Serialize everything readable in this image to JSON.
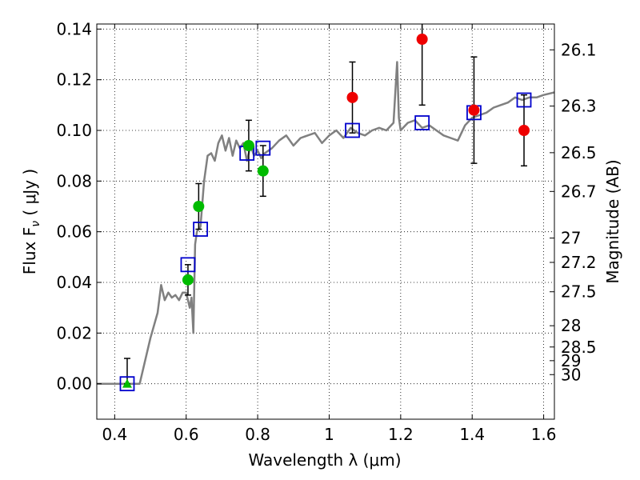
{
  "chart_data": {
    "type": "scatter",
    "xlabel": "Wavelength  λ (μm)",
    "ylabel": "Flux  F",
    "ylabel_subscript": "ν",
    "ylabel_unit": " ( μJy )",
    "y2label": "Magnitude (AB)",
    "xlim": [
      0.35,
      1.63
    ],
    "ylim": [
      -0.014,
      0.142
    ],
    "x_ticks": [
      0.4,
      0.6,
      0.8,
      1.0,
      1.2,
      1.4,
      1.6
    ],
    "x_tick_labels": [
      "0.4",
      "0.6",
      "0.8",
      "1",
      "1.2",
      "1.4",
      "1.6"
    ],
    "y_ticks": [
      0.0,
      0.02,
      0.04,
      0.06,
      0.08,
      0.1,
      0.12,
      0.14
    ],
    "y_tick_labels": [
      "0.00",
      "0.02",
      "0.04",
      "0.06",
      "0.08",
      "0.10",
      "0.12",
      "0.14"
    ],
    "y2_ticks": [
      {
        "label": "26.1",
        "flux": 0.1318
      },
      {
        "label": "26.3",
        "flux": 0.1096
      },
      {
        "label": "26.5",
        "flux": 0.0912
      },
      {
        "label": "26.7",
        "flux": 0.0759
      },
      {
        "label": "27",
        "flux": 0.0575
      },
      {
        "label": "27.2",
        "flux": 0.0479
      },
      {
        "label": "27.5",
        "flux": 0.0363
      },
      {
        "label": "28",
        "flux": 0.0229
      },
      {
        "label": "28.5",
        "flux": 0.0145
      },
      {
        "label": "29",
        "flux": 0.0091
      },
      {
        "label": "30",
        "flux": 0.0036
      }
    ],
    "grid": true,
    "colors": {
      "sed": "#808080",
      "model": "#0000cc",
      "green": "#00bb00",
      "red": "#ee0000",
      "errorbar": "#000000"
    },
    "series": [
      {
        "kind": "line",
        "color": "gray",
        "x": [
          0.35,
          0.4,
          0.45,
          0.47,
          0.5,
          0.52,
          0.53,
          0.54,
          0.55,
          0.56,
          0.57,
          0.58,
          0.59,
          0.6,
          0.61,
          0.615,
          0.62,
          0.625,
          0.63,
          0.64,
          0.65,
          0.66,
          0.67,
          0.68,
          0.69,
          0.7,
          0.71,
          0.72,
          0.73,
          0.74,
          0.75,
          0.76,
          0.77,
          0.78,
          0.79,
          0.8,
          0.81,
          0.82,
          0.84,
          0.86,
          0.88,
          0.9,
          0.92,
          0.94,
          0.96,
          0.98,
          1.0,
          1.02,
          1.04,
          1.06,
          1.08,
          1.1,
          1.12,
          1.14,
          1.16,
          1.18,
          1.19,
          1.195,
          1.2,
          1.22,
          1.24,
          1.26,
          1.28,
          1.3,
          1.32,
          1.34,
          1.36,
          1.38,
          1.4,
          1.42,
          1.44,
          1.46,
          1.48,
          1.5,
          1.52,
          1.54,
          1.56,
          1.58,
          1.6,
          1.63
        ],
        "y": [
          0.0,
          0.0,
          0.0,
          0.0,
          0.018,
          0.028,
          0.039,
          0.033,
          0.036,
          0.034,
          0.035,
          0.033,
          0.036,
          0.036,
          0.03,
          0.034,
          0.02,
          0.055,
          0.06,
          0.062,
          0.08,
          0.09,
          0.091,
          0.088,
          0.095,
          0.098,
          0.092,
          0.097,
          0.09,
          0.096,
          0.093,
          0.095,
          0.088,
          0.094,
          0.09,
          0.092,
          0.089,
          0.091,
          0.093,
          0.096,
          0.098,
          0.094,
          0.097,
          0.098,
          0.099,
          0.095,
          0.098,
          0.1,
          0.097,
          0.101,
          0.099,
          0.098,
          0.1,
          0.101,
          0.1,
          0.103,
          0.127,
          0.105,
          0.1,
          0.103,
          0.104,
          0.101,
          0.102,
          0.1,
          0.098,
          0.097,
          0.096,
          0.102,
          0.105,
          0.106,
          0.107,
          0.109,
          0.11,
          0.111,
          0.113,
          0.112,
          0.113,
          0.113,
          0.114,
          0.115
        ]
      },
      {
        "kind": "model",
        "marker": "square",
        "points": [
          {
            "x": 0.435,
            "y": 0.0
          },
          {
            "x": 0.605,
            "y": 0.047
          },
          {
            "x": 0.64,
            "y": 0.061
          },
          {
            "x": 0.77,
            "y": 0.091
          },
          {
            "x": 0.815,
            "y": 0.093
          },
          {
            "x": 1.065,
            "y": 0.1
          },
          {
            "x": 1.26,
            "y": 0.103
          },
          {
            "x": 1.405,
            "y": 0.107
          },
          {
            "x": 1.545,
            "y": 0.112
          }
        ]
      },
      {
        "kind": "observed",
        "color": "green",
        "points": [
          {
            "x": 0.605,
            "y": 0.041,
            "yerr_low": 0.006,
            "yerr_high": 0.006
          },
          {
            "x": 0.635,
            "y": 0.07,
            "yerr_low": 0.009,
            "yerr_high": 0.009
          },
          {
            "x": 0.775,
            "y": 0.094,
            "yerr_low": 0.01,
            "yerr_high": 0.01
          },
          {
            "x": 0.815,
            "y": 0.084,
            "yerr_low": 0.01,
            "yerr_high": 0.01
          }
        ]
      },
      {
        "kind": "upper",
        "color": "green",
        "points": [
          {
            "x": 0.435,
            "y": 0.0,
            "yerr_low": 0.0,
            "yerr_high": 0.01
          }
        ]
      },
      {
        "kind": "observed",
        "color": "red",
        "points": [
          {
            "x": 1.065,
            "y": 0.113,
            "yerr_low": 0.014,
            "yerr_high": 0.014
          },
          {
            "x": 1.26,
            "y": 0.136,
            "yerr_low": 0.026,
            "yerr_high": 0.026
          },
          {
            "x": 1.405,
            "y": 0.108,
            "yerr_low": 0.021,
            "yerr_high": 0.021
          },
          {
            "x": 1.545,
            "y": 0.1,
            "yerr_low": 0.014,
            "yerr_high": 0.014
          }
        ]
      }
    ]
  }
}
